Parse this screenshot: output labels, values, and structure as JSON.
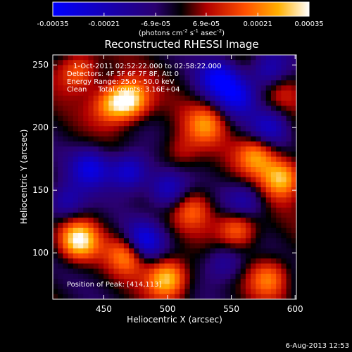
{
  "chart_data": {
    "type": "heatmap",
    "title": "Reconstructed RHESSI Image",
    "xlabel": "Heliocentric X (arcsec)",
    "ylabel": "Heliocentric Y (arcsec)",
    "xlim": [
      410,
      601
    ],
    "ylim": [
      63,
      258
    ],
    "x_ticks": [
      450,
      500,
      550,
      600
    ],
    "y_ticks": [
      100,
      150,
      200,
      250
    ],
    "colorbar": {
      "ticks": [
        "-0.00035",
        "-0.00021",
        "-6.9e-05",
        "6.9e-05",
        "0.00021",
        "0.00035"
      ],
      "tick_values": [
        -0.00035,
        -0.00021,
        -6.9e-05,
        6.9e-05,
        0.00021,
        0.00035
      ],
      "range": [
        -0.00035,
        0.00035
      ],
      "unit_parts": {
        "pre": "(photons cm",
        "sup1": "-2",
        "mid": " s",
        "sup2": "-1",
        "post": " asec",
        "sup3": "-2",
        "end": ")"
      }
    },
    "annotations": [
      "1-Oct-2011 02:52:22.000 to 02:58:22.000",
      "Detectors: 4F 5F 6F 7F 8F, Att 0",
      "Energy Range: 25.0 - 50.0 keV",
      "Clean     Total counts: 3.16E+04"
    ],
    "peak_label": "Position of Peak: [414,113]",
    "peak": [
      414,
      113
    ],
    "features": [
      {
        "x": 470,
        "y": 222,
        "v": 0.00035
      },
      {
        "x": 455,
        "y": 218,
        "v": 0.00022
      },
      {
        "x": 530,
        "y": 203,
        "v": 0.00021
      },
      {
        "x": 570,
        "y": 178,
        "v": 0.00025
      },
      {
        "x": 590,
        "y": 160,
        "v": 0.0003
      },
      {
        "x": 555,
        "y": 120,
        "v": 0.00025
      },
      {
        "x": 520,
        "y": 135,
        "v": 0.00018
      },
      {
        "x": 430,
        "y": 110,
        "v": 0.00034
      },
      {
        "x": 470,
        "y": 100,
        "v": 0.0003
      },
      {
        "x": 500,
        "y": 80,
        "v": 0.00033
      },
      {
        "x": 430,
        "y": 245,
        "v": 0.00022
      },
      {
        "x": 510,
        "y": 180,
        "v": 0.00012
      },
      {
        "x": 580,
        "y": 80,
        "v": 0.00022
      },
      {
        "x": 590,
        "y": 230,
        "v": 0.0001
      },
      {
        "x": 480,
        "y": 108,
        "v": -0.00034
      },
      {
        "x": 470,
        "y": 165,
        "v": -0.00028
      },
      {
        "x": 440,
        "y": 168,
        "v": -0.00025
      },
      {
        "x": 500,
        "y": 150,
        "v": -0.00024
      },
      {
        "x": 540,
        "y": 240,
        "v": -0.00028
      },
      {
        "x": 555,
        "y": 225,
        "v": -0.00024
      },
      {
        "x": 580,
        "y": 200,
        "v": -0.0002
      },
      {
        "x": 580,
        "y": 245,
        "v": -0.00022
      },
      {
        "x": 560,
        "y": 140,
        "v": -0.00018
      },
      {
        "x": 545,
        "y": 92,
        "v": -0.00018
      },
      {
        "x": 420,
        "y": 140,
        "v": -0.0002
      }
    ]
  },
  "timestamp": "6-Aug-2013 12:53"
}
